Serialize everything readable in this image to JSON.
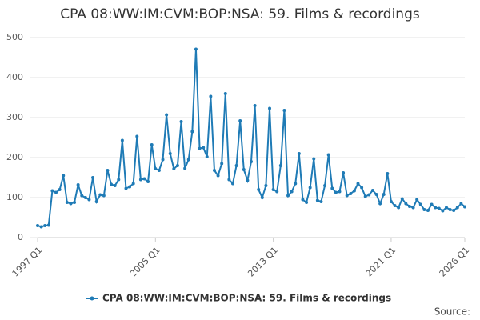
{
  "chart_data": {
    "type": "line",
    "title": "CPA 08:WW:IM:CVM:BOP:NSA: 59. Films & recordings",
    "source": "Source:",
    "categories": [
      "1997 Q1",
      null,
      null,
      null,
      null,
      null,
      null,
      null,
      null,
      null,
      null,
      null,
      null,
      null,
      null,
      null,
      null,
      null,
      null,
      null,
      null,
      null,
      null,
      null,
      null,
      null,
      null,
      null,
      null,
      null,
      null,
      null,
      "2005 Q1",
      null,
      null,
      null,
      null,
      null,
      null,
      null,
      null,
      null,
      null,
      null,
      null,
      null,
      null,
      null,
      null,
      null,
      null,
      null,
      null,
      null,
      null,
      null,
      null,
      null,
      null,
      null,
      null,
      null,
      null,
      null,
      "2013 Q1",
      null,
      null,
      null,
      null,
      null,
      null,
      null,
      null,
      null,
      null,
      null,
      null,
      null,
      null,
      null,
      null,
      null,
      null,
      null,
      null,
      null,
      null,
      null,
      null,
      null,
      null,
      null,
      null,
      null,
      null,
      null,
      "2021 Q1",
      null,
      null,
      null,
      null,
      null,
      null,
      null,
      null,
      null,
      null,
      null,
      null,
      null,
      null,
      null,
      null,
      null,
      null,
      null,
      "2026 Q1"
    ],
    "series": [
      {
        "name": "CPA 08:WW:IM:CVM:BOP:NSA: 59. Films & recordings",
        "color": "#1f7bb6",
        "values": [
          30,
          27,
          30,
          31,
          117,
          113,
          120,
          155,
          88,
          85,
          88,
          132,
          105,
          100,
          95,
          150,
          90,
          107,
          105,
          168,
          133,
          130,
          145,
          243,
          123,
          127,
          135,
          253,
          145,
          147,
          140,
          232,
          172,
          168,
          195,
          307,
          210,
          172,
          180,
          290,
          173,
          195,
          265,
          471,
          223,
          225,
          202,
          353,
          168,
          155,
          185,
          360,
          145,
          135,
          180,
          292,
          170,
          143,
          190,
          330,
          120,
          100,
          130,
          323,
          120,
          115,
          180,
          318,
          105,
          115,
          135,
          210,
          95,
          88,
          125,
          197,
          93,
          90,
          130,
          207,
          123,
          113,
          115,
          162,
          105,
          110,
          117,
          135,
          125,
          103,
          107,
          118,
          108,
          85,
          108,
          160,
          90,
          80,
          75,
          97,
          85,
          78,
          75,
          95,
          83,
          70,
          68,
          83,
          75,
          73,
          67,
          75,
          70,
          68,
          75,
          85,
          77
        ]
      }
    ],
    "ylim": [
      0,
      500
    ],
    "yticks": [
      0,
      100,
      200,
      300,
      400,
      500
    ],
    "grid": true
  }
}
